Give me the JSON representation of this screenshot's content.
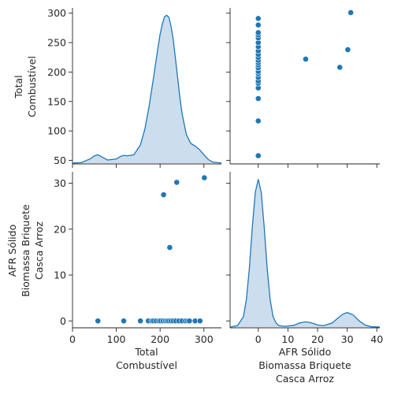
{
  "chart_data": {
    "type": "pairplot",
    "variables": [
      {
        "key": "total",
        "label_lines": [
          "Total",
          "Combustível"
        ]
      },
      {
        "key": "afr",
        "label_lines": [
          "AFR Sólido",
          "Biomassa Briquete",
          "Casca Arroz"
        ]
      }
    ],
    "color": "#1f77b4",
    "kde_fill": "#c6d9ec",
    "axes": {
      "total": {
        "range": [
          0,
          340
        ],
        "ticks": [
          0,
          100,
          200,
          300
        ],
        "y_range": [
          44,
          309
        ],
        "y_ticks": [
          50,
          100,
          150,
          200,
          250,
          300
        ]
      },
      "afr": {
        "range": [
          -9.5,
          41
        ],
        "ticks": [
          0,
          10,
          20,
          30,
          40
        ],
        "y_range": [
          -1.5,
          32.5
        ],
        "y_ticks": [
          0,
          10,
          20,
          30
        ]
      }
    },
    "points": [
      {
        "total": 58,
        "afr": 0
      },
      {
        "total": 117,
        "afr": 0
      },
      {
        "total": 155,
        "afr": 0
      },
      {
        "total": 173,
        "afr": 0
      },
      {
        "total": 181,
        "afr": 0
      },
      {
        "total": 185,
        "afr": 0
      },
      {
        "total": 191,
        "afr": 0
      },
      {
        "total": 197,
        "afr": 0
      },
      {
        "total": 201,
        "afr": 0
      },
      {
        "total": 207,
        "afr": 0
      },
      {
        "total": 212,
        "afr": 0
      },
      {
        "total": 216,
        "afr": 0
      },
      {
        "total": 220,
        "afr": 0
      },
      {
        "total": 225,
        "afr": 0
      },
      {
        "total": 230,
        "afr": 0
      },
      {
        "total": 236,
        "afr": 0
      },
      {
        "total": 243,
        "afr": 0
      },
      {
        "total": 250,
        "afr": 0
      },
      {
        "total": 258,
        "afr": 0
      },
      {
        "total": 263,
        "afr": 0
      },
      {
        "total": 267,
        "afr": 0
      },
      {
        "total": 280,
        "afr": 0
      },
      {
        "total": 291,
        "afr": 0
      },
      {
        "total": 222,
        "afr": 16
      },
      {
        "total": 208,
        "afr": 27.5
      },
      {
        "total": 238,
        "afr": 30.2
      },
      {
        "total": 301,
        "afr": 31.2
      }
    ],
    "kde_total": {
      "x": [
        0,
        20,
        40,
        50,
        58,
        65,
        80,
        100,
        110,
        117,
        125,
        140,
        155,
        165,
        175,
        185,
        195,
        200,
        205,
        210,
        215,
        220,
        225,
        230,
        235,
        240,
        245,
        250,
        260,
        270,
        280,
        290,
        300,
        310,
        320,
        340
      ],
      "y": [
        2e-05,
        0.0001,
        0.0008,
        0.0014,
        0.0016,
        0.0013,
        0.0006,
        0.0008,
        0.0013,
        0.0015,
        0.0014,
        0.0016,
        0.0035,
        0.0065,
        0.011,
        0.0165,
        0.0222,
        0.0248,
        0.0268,
        0.0282,
        0.0285,
        0.0281,
        0.0264,
        0.0238,
        0.0202,
        0.0165,
        0.0128,
        0.0096,
        0.0055,
        0.0038,
        0.0033,
        0.0026,
        0.0016,
        0.0007,
        0.0002,
        2e-05
      ]
    },
    "kde_afr": {
      "x": [
        -9.5,
        -7,
        -5,
        -4,
        -3,
        -2,
        -1,
        0,
        1,
        2,
        3,
        4,
        5,
        6,
        7,
        9,
        12,
        14,
        16,
        18,
        20,
        22,
        25,
        27,
        28.5,
        30,
        32,
        34,
        36,
        38,
        41
      ],
      "y": [
        0.0,
        0.0004,
        0.003,
        0.008,
        0.017,
        0.029,
        0.039,
        0.0428,
        0.039,
        0.029,
        0.017,
        0.008,
        0.003,
        0.0012,
        0.0004,
        0.0002,
        0.0005,
        0.0012,
        0.0015,
        0.0012,
        0.0006,
        0.0004,
        0.0012,
        0.0027,
        0.0037,
        0.0042,
        0.0035,
        0.0018,
        0.0006,
        0.0001,
        0.0
      ]
    }
  }
}
